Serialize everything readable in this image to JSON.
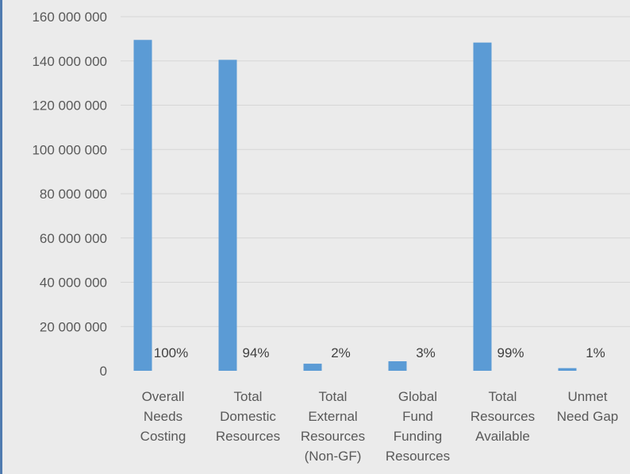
{
  "chart_data": {
    "type": "bar",
    "categories": [
      [
        "Overall",
        "Needs",
        "Costing"
      ],
      [
        "Total",
        "Domestic",
        "Resources"
      ],
      [
        "Total",
        "External",
        "Resources",
        "(Non-GF)"
      ],
      [
        "Global",
        "Fund",
        "Funding",
        "Resources"
      ],
      [
        "Total",
        "Resources",
        "Available"
      ],
      [
        "Unmet",
        "Need Gap"
      ]
    ],
    "series": [
      {
        "values": [
          149500000,
          140500000,
          3200000,
          4300000,
          148300000,
          1200000
        ],
        "color": "#5b9bd5"
      },
      {
        "values": [
          100,
          94,
          2,
          3,
          99,
          1
        ],
        "data_labels": [
          "100%",
          "94%",
          "2%",
          "3%",
          "99%",
          "1%"
        ]
      }
    ],
    "ylim": [
      0,
      160000000
    ],
    "yticks": [
      0,
      20000000,
      40000000,
      60000000,
      80000000,
      100000000,
      120000000,
      140000000,
      160000000
    ],
    "ytick_labels": [
      "0",
      "20 000 000",
      "40 000 000",
      "60 000 000",
      "80 000 000",
      "100 000 000",
      "120 000 000",
      "140 000 000",
      "160 000 000"
    ],
    "grid": true,
    "legend": "none",
    "title": "",
    "xlabel": "",
    "ylabel": ""
  }
}
